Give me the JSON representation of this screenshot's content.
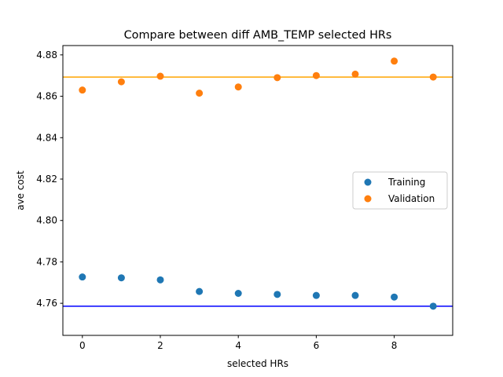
{
  "chart_data": {
    "type": "scatter",
    "title": "Compare between diff AMB_TEMP selected HRs",
    "xlabel": "selected HRs",
    "ylabel": "ave cost",
    "xlim": [
      -0.5,
      9.5
    ],
    "ylim": [
      4.7445,
      4.8845
    ],
    "xticks": [
      0,
      2,
      4,
      6,
      8
    ],
    "yticks": [
      4.76,
      4.78,
      4.8,
      4.82,
      4.84,
      4.86,
      4.88
    ],
    "xtick_labels": [
      "0",
      "2",
      "4",
      "6",
      "8"
    ],
    "ytick_labels": [
      "4.76",
      "4.78",
      "4.80",
      "4.82",
      "4.84",
      "4.86",
      "4.88"
    ],
    "grid": false,
    "legend_position": "center-right",
    "series": [
      {
        "name": "Training",
        "color": "#1f77b4",
        "x": [
          0,
          1,
          2,
          3,
          4,
          5,
          6,
          7,
          8,
          9
        ],
        "y": [
          4.7727,
          4.7723,
          4.7713,
          4.7657,
          4.7648,
          4.7643,
          4.7638,
          4.7638,
          4.763,
          4.7586
        ]
      },
      {
        "name": "Validation",
        "color": "#ff7f0e",
        "x": [
          0,
          1,
          2,
          3,
          4,
          5,
          6,
          7,
          8,
          9
        ],
        "y": [
          4.863,
          4.867,
          4.8697,
          4.8615,
          4.8645,
          4.869,
          4.87,
          4.8707,
          4.877,
          4.8693
        ]
      }
    ],
    "reference_lines": [
      {
        "y": 4.7586,
        "color": "#0000ff"
      },
      {
        "y": 4.8693,
        "color": "#ffa500"
      }
    ]
  }
}
